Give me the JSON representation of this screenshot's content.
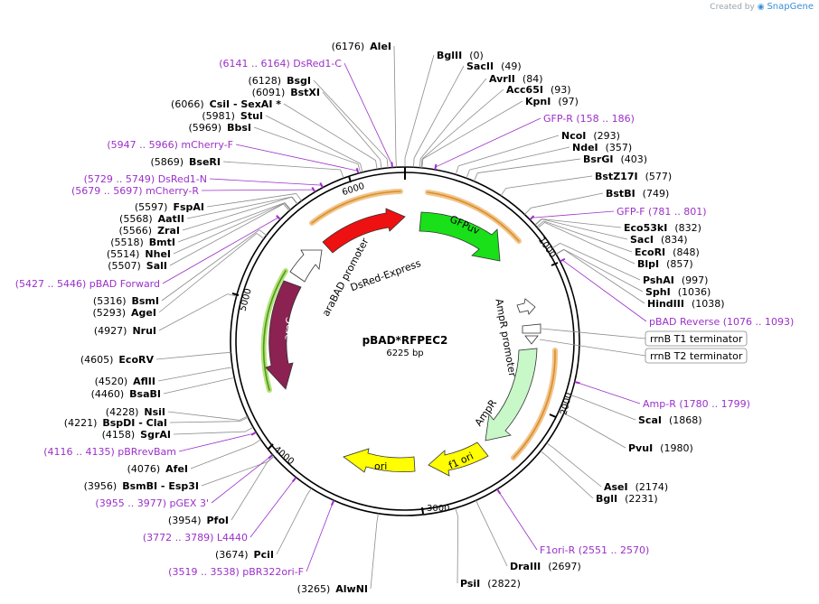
{
  "credit": {
    "prefix": "Created by",
    "brand": "SnapGene"
  },
  "plasmid": {
    "name": "pBAD*RFPEC2",
    "length_label": "6225 bp",
    "length": 6225
  },
  "ruler": [
    "1000",
    "2000",
    "3000",
    "4000",
    "5000",
    "6000"
  ],
  "colors": {
    "enzyme": "#000000",
    "primer": "#9b30c8",
    "line": "#8c8c8c",
    "araC": "#8b2252",
    "DsRed": "#ee1111",
    "GFPuv": "#19e019",
    "AmpR": "#c8f7c8",
    "ori": "#ffff00",
    "f1ori": "#ffff00",
    "promoter": "#ffffff",
    "orange": "#e8a33c"
  },
  "enzymes_right": [
    {
      "name": "BglII",
      "pos": "(0)"
    },
    {
      "name": "SacII",
      "pos": "(49)"
    },
    {
      "name": "AvrII",
      "pos": "(84)"
    },
    {
      "name": "Acc65I",
      "pos": "(93)"
    },
    {
      "name": "KpnI",
      "pos": "(97)"
    },
    {
      "name": "NcoI",
      "pos": "(293)"
    },
    {
      "name": "NdeI",
      "pos": "(357)"
    },
    {
      "name": "BsrGI",
      "pos": "(403)"
    },
    {
      "name": "BstZ17I",
      "pos": "(577)"
    },
    {
      "name": "BstBI",
      "pos": "(749)"
    },
    {
      "name": "Eco53kI",
      "pos": "(832)"
    },
    {
      "name": "SacI",
      "pos": "(834)"
    },
    {
      "name": "EcoRI",
      "pos": "(848)"
    },
    {
      "name": "BlpI",
      "pos": "(857)"
    },
    {
      "name": "PshAI",
      "pos": "(997)"
    },
    {
      "name": "SphI",
      "pos": "(1036)"
    },
    {
      "name": "HindIII",
      "pos": "(1038)"
    },
    {
      "name": "ScaI",
      "pos": "(1868)"
    },
    {
      "name": "PvuI",
      "pos": "(1980)"
    },
    {
      "name": "AseI",
      "pos": "(2174)"
    },
    {
      "name": "BglI",
      "pos": "(2231)"
    },
    {
      "name": "DraIII",
      "pos": "(2697)"
    },
    {
      "name": "PsiI",
      "pos": "(2822)"
    }
  ],
  "enzymes_left": [
    {
      "name": "AleI",
      "pos": "(6176)"
    },
    {
      "name": "BsgI",
      "pos": "(6128)"
    },
    {
      "name": "BstXI",
      "pos": "(6091)"
    },
    {
      "name": "CsiI  - SexAI *",
      "pos": "(6066)"
    },
    {
      "name": "StuI",
      "pos": "(5981)"
    },
    {
      "name": "BbsI",
      "pos": "(5969)"
    },
    {
      "name": "BseRI",
      "pos": "(5869)"
    },
    {
      "name": "FspAI",
      "pos": "(5597)"
    },
    {
      "name": "AatII",
      "pos": "(5568)"
    },
    {
      "name": "ZraI",
      "pos": "(5566)"
    },
    {
      "name": "BmtI",
      "pos": "(5518)"
    },
    {
      "name": "NheI",
      "pos": "(5514)"
    },
    {
      "name": "SalI",
      "pos": "(5507)"
    },
    {
      "name": "BsmI",
      "pos": "(5316)"
    },
    {
      "name": "AgeI",
      "pos": "(5293)"
    },
    {
      "name": "NruI",
      "pos": "(4927)"
    },
    {
      "name": "EcoRV",
      "pos": "(4605)"
    },
    {
      "name": "AflII",
      "pos": "(4520)"
    },
    {
      "name": "BsaBI",
      "pos": "(4460)"
    },
    {
      "name": "NsiI",
      "pos": "(4228)"
    },
    {
      "name": "BspDI  - ClaI",
      "pos": "(4221)"
    },
    {
      "name": "SgrAI",
      "pos": "(4158)"
    },
    {
      "name": "AfeI",
      "pos": "(4076)"
    },
    {
      "name": "BsmBI  - Esp3I",
      "pos": "(3956)"
    },
    {
      "name": "PfoI",
      "pos": "(3954)"
    },
    {
      "name": "PciI",
      "pos": "(3674)"
    },
    {
      "name": "AlwNI",
      "pos": "(3265)"
    }
  ],
  "primers": [
    {
      "name": "DsRed1-C",
      "range": "(6141 .. 6164)"
    },
    {
      "name": "GFP-R",
      "range": "(158 .. 186)"
    },
    {
      "name": "mCherry-F",
      "range": "(5947 .. 5966)"
    },
    {
      "name": "DsRed1-N",
      "range": "(5729 .. 5749)"
    },
    {
      "name": "mCherry-R",
      "range": "(5679 .. 5697)"
    },
    {
      "name": "GFP-F",
      "range": "(781 .. 801)"
    },
    {
      "name": "pBAD Forward",
      "range": "(5427 .. 5446)"
    },
    {
      "name": "pBAD Reverse",
      "range": "(1076 .. 1093)"
    },
    {
      "name": "Amp-R",
      "range": "(1780 .. 1799)"
    },
    {
      "name": "pBRrevBam",
      "range": "(4116 .. 4135)"
    },
    {
      "name": "pGEX 3'",
      "range": "(3955 .. 3977)"
    },
    {
      "name": "L4440",
      "range": "(3772 .. 3789)"
    },
    {
      "name": "pBR322ori-F",
      "range": "(3519 .. 3538)"
    },
    {
      "name": "F1ori-R",
      "range": "(2551 .. 2570)"
    }
  ],
  "terminators": [
    "rrnB T1 terminator",
    "rrnB T2 terminator"
  ],
  "features": {
    "DsRed": "DsRed-Express",
    "GFPuv": "GFPuv",
    "araC": "araC",
    "araBAD": "araBAD promoter",
    "AmpR_promoter": "AmpR promoter",
    "AmpR": "AmpR",
    "f1ori": "f1 ori",
    "ori": "ori"
  }
}
